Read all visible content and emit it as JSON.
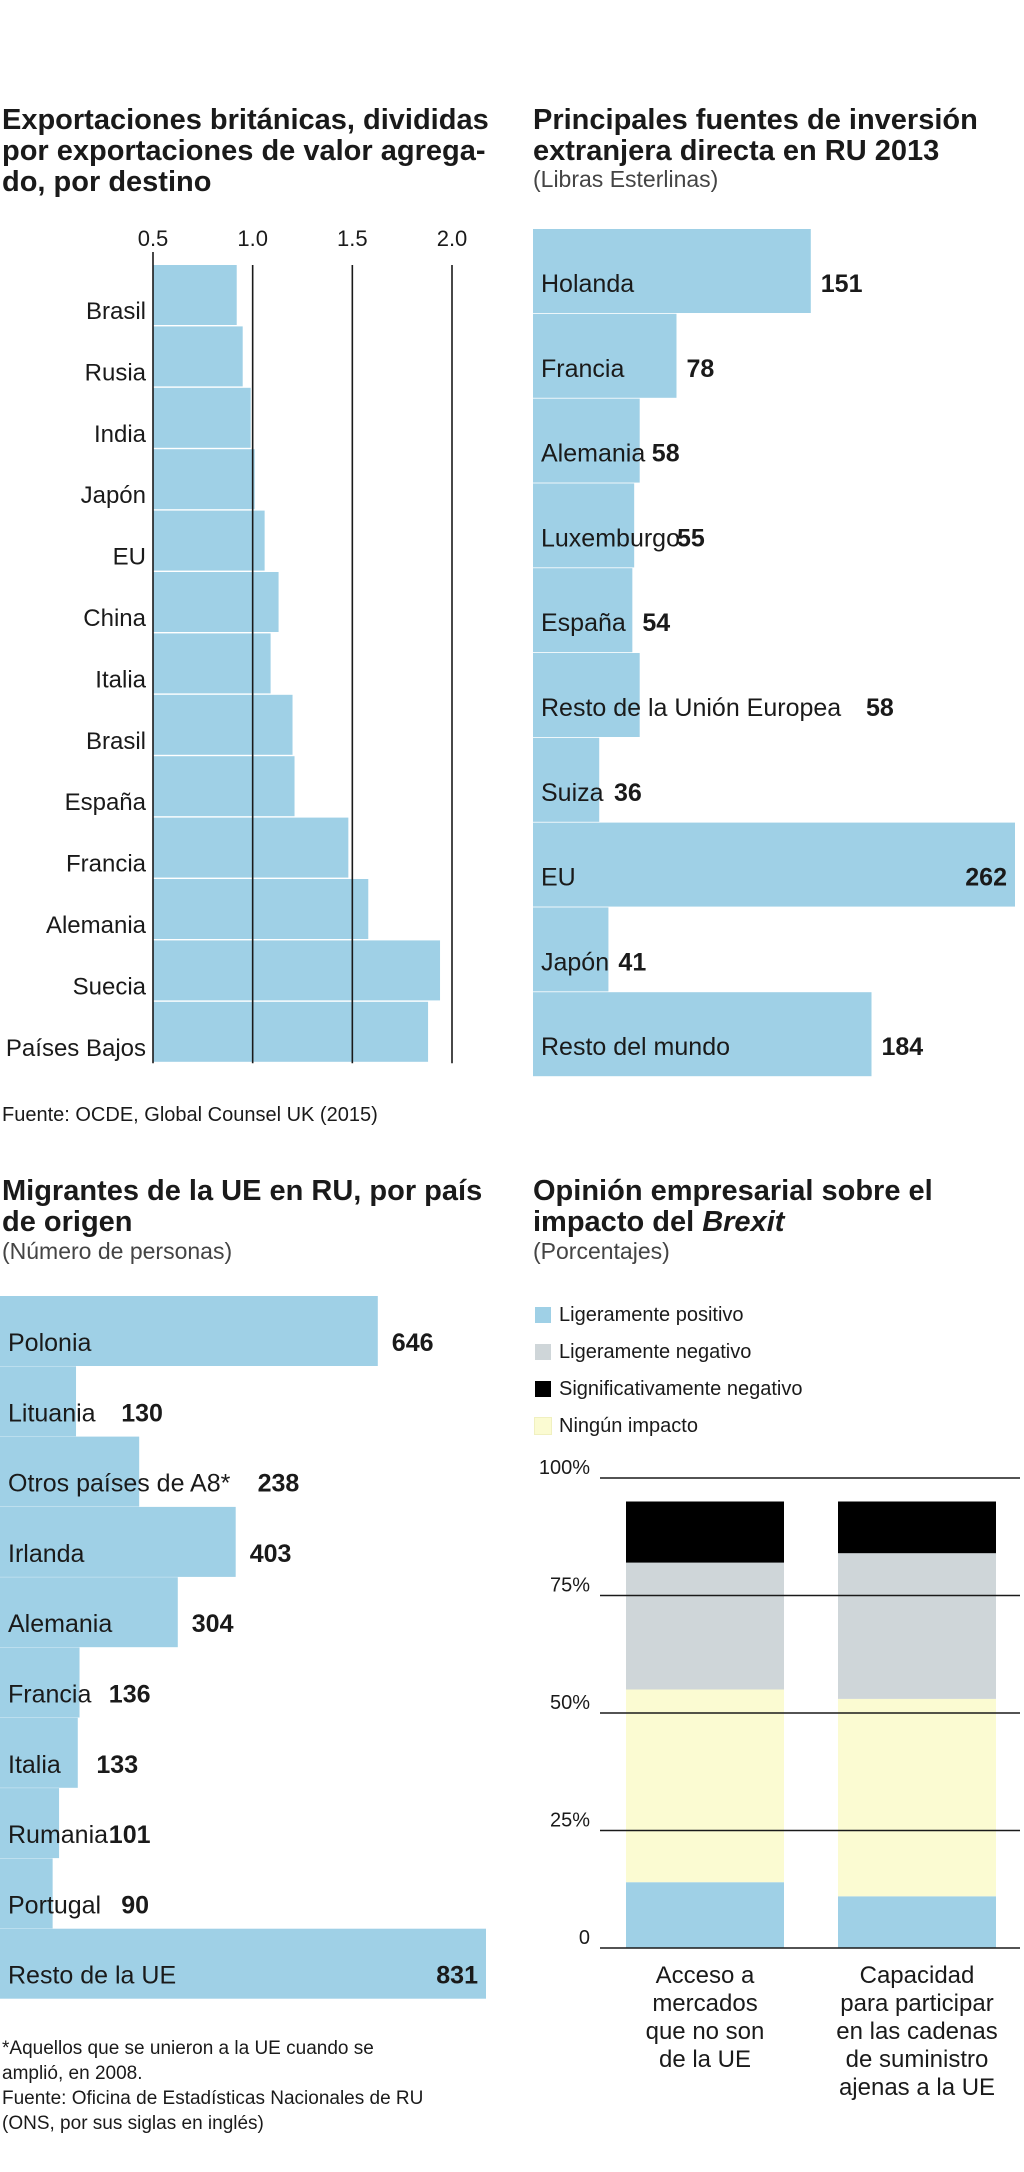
{
  "chart_data": [
    {
      "type": "bar",
      "orientation": "horizontal",
      "title": "Exportaciones británicas, divididas por exportaciones de valor agregado, por destino",
      "title_lines": [
        "Exportaciones británicas, divididas",
        "por exportaciones de valor agrega-",
        "do, por destino"
      ],
      "categories": [
        "Brasil",
        "Rusia",
        "India",
        "Japón",
        "EU",
        "China",
        "Italia",
        "Brasil",
        "España",
        "Francia",
        "Alemania",
        "Suecia",
        "Países Bajos"
      ],
      "values": [
        0.92,
        0.95,
        0.99,
        1.01,
        1.06,
        1.13,
        1.09,
        1.2,
        1.21,
        1.48,
        1.58,
        1.94,
        1.88
      ],
      "xlim": [
        0.5,
        2.0
      ],
      "x_bar_origin": 0.5,
      "xticks": [
        "0.5",
        "1.0",
        "1.5",
        "2.0"
      ],
      "xtick_values": [
        0.5,
        1.0,
        1.5,
        2.0
      ],
      "source": "Fuente: OCDE, Global Counsel UK (2015)"
    },
    {
      "type": "bar",
      "orientation": "horizontal",
      "title": "Principales fuentes de inversión extranjera directa en RU 2013",
      "title_lines": [
        "Principales fuentes de inversión",
        "extranjera directa en RU 2013"
      ],
      "subtitle": "(Libras Esterlinas)",
      "categories": [
        "Holanda",
        "Francia",
        "Alemania",
        "Luxemburgo",
        "España",
        "Resto de la Unión Europea",
        "Suiza",
        "EU",
        "Japón",
        "Resto del mundo"
      ],
      "values": [
        151,
        78,
        58,
        55,
        54,
        58,
        36,
        262,
        41,
        184
      ],
      "labels": [
        "151",
        "78",
        "58",
        "55",
        "54",
        "58",
        "36",
        "262",
        "41",
        "184"
      ]
    },
    {
      "type": "bar",
      "orientation": "horizontal",
      "title": "Migrantes de la UE en RU, por país de origen",
      "title_lines": [
        "Migrantes de la UE en RU, por país",
        "de origen"
      ],
      "subtitle": "(Número de personas)",
      "categories": [
        "Polonia",
        "Lituania",
        "Otros países de A8*",
        "Irlanda",
        "Alemania",
        "Francia",
        "Italia",
        "Rumania",
        "Portugal",
        "Resto de la UE"
      ],
      "values": [
        646,
        130,
        238,
        403,
        304,
        136,
        133,
        101,
        90,
        831
      ],
      "labels": [
        "646",
        "130",
        "238",
        "403",
        "304",
        "136",
        "133",
        "101",
        "90",
        "831"
      ],
      "note_lines": [
        "*Aquellos que se unieron a la UE cuando se",
        "amplió, en 2008.",
        "Fuente: Oficina de Estadísticas Nacionales de RU",
        "(ONS, por sus siglas en inglés)"
      ]
    },
    {
      "type": "bar",
      "stacked": true,
      "title": "Opinión empresarial sobre el impacto del Brexit",
      "title_line1": "Opinión empresarial sobre el",
      "title_line2_prefix": "impacto del ",
      "title_line2_emph": "Brexit",
      "subtitle": "(Porcentajes)",
      "categories": [
        "Acceso a mercados que no son de la UE",
        "Capacidad para participar en las cadenas de suministro ajenas a la UE"
      ],
      "category_lines": [
        [
          "Acceso a",
          "mercados",
          "que no son",
          "de la UE"
        ],
        [
          "Capacidad",
          "para participar",
          "en las cadenas",
          "de suministro",
          "ajenas a la UE"
        ]
      ],
      "series": [
        {
          "name": "Ligeramente positivo",
          "color": "#9fd0e6",
          "values": [
            14,
            11
          ]
        },
        {
          "name": "Ningún impacto",
          "color": "#fbfbd2",
          "values": [
            41,
            42
          ]
        },
        {
          "name": "Ligeramente negativo",
          "color": "#cfd6d9",
          "values": [
            27,
            31
          ]
        },
        {
          "name": "Significativamente negativo",
          "color": "#000000",
          "values": [
            13,
            11
          ]
        }
      ],
      "legend_order": [
        "Ligeramente positivo",
        "Ligeramente negativo",
        "Significativamente negativo",
        "Ningún impacto"
      ],
      "ylim": [
        0,
        100
      ],
      "yticks": [
        "0",
        "25%",
        "50%",
        "75%",
        "100%"
      ],
      "ytick_values": [
        0,
        25,
        50,
        75,
        100
      ]
    }
  ],
  "colors": {
    "bar": "#9fd0e6",
    "text": "#1a1a1a",
    "gridline": "#1a1a1a"
  }
}
